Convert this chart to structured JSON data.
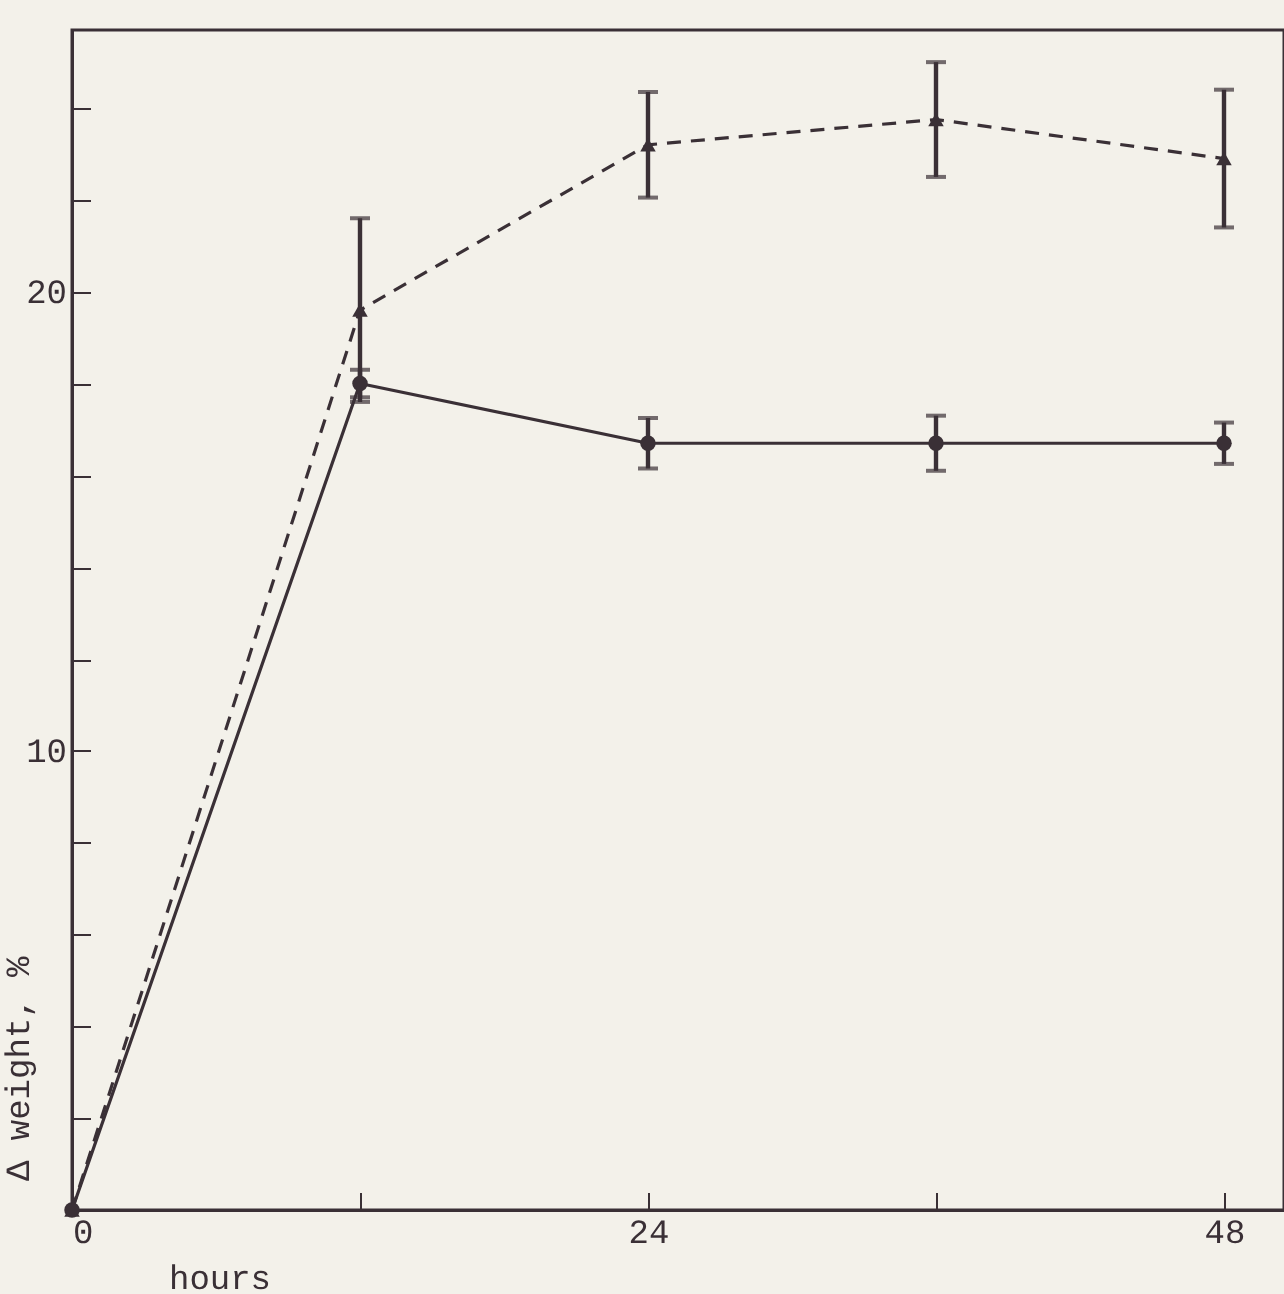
{
  "chart_data": {
    "type": "line",
    "xlabel": "hours",
    "ylabel": "Δ weight, %",
    "x": [
      0,
      12,
      24,
      36,
      48
    ],
    "series": [
      {
        "color": "#3a3036",
        "line_style": "dashed",
        "marker": "triangle",
        "values": [
          0,
          19.6,
          23.2,
          23.75,
          22.9
        ],
        "errors": [
          null,
          2.0,
          1.15,
          1.25,
          1.5
        ]
      },
      {
        "color": "#3a3036",
        "line_style": "solid",
        "marker": "circle",
        "values": [
          0,
          18.0,
          16.7,
          16.7,
          16.7
        ],
        "errors": [
          null,
          0.3,
          0.55,
          0.6,
          0.45
        ]
      }
    ],
    "xlim": [
      0,
      50.5
    ],
    "xticks": [
      0,
      {
        "value": 12,
        "label": null
      },
      24,
      {
        "value": 36,
        "label": null
      },
      48
    ],
    "ylim": [
      0,
      25.7
    ],
    "yticks": [
      {
        "value": 2,
        "label": null
      },
      {
        "value": 4,
        "label": null
      },
      {
        "value": 6,
        "label": null
      },
      {
        "value": 8,
        "label": null
      },
      10,
      {
        "value": 12,
        "label": null
      },
      {
        "value": 14,
        "label": null
      },
      {
        "value": 16,
        "label": null
      },
      {
        "value": 18,
        "label": null
      },
      20,
      {
        "value": 22,
        "label": null
      },
      {
        "value": 24,
        "label": null
      }
    ],
    "grid": false
  }
}
